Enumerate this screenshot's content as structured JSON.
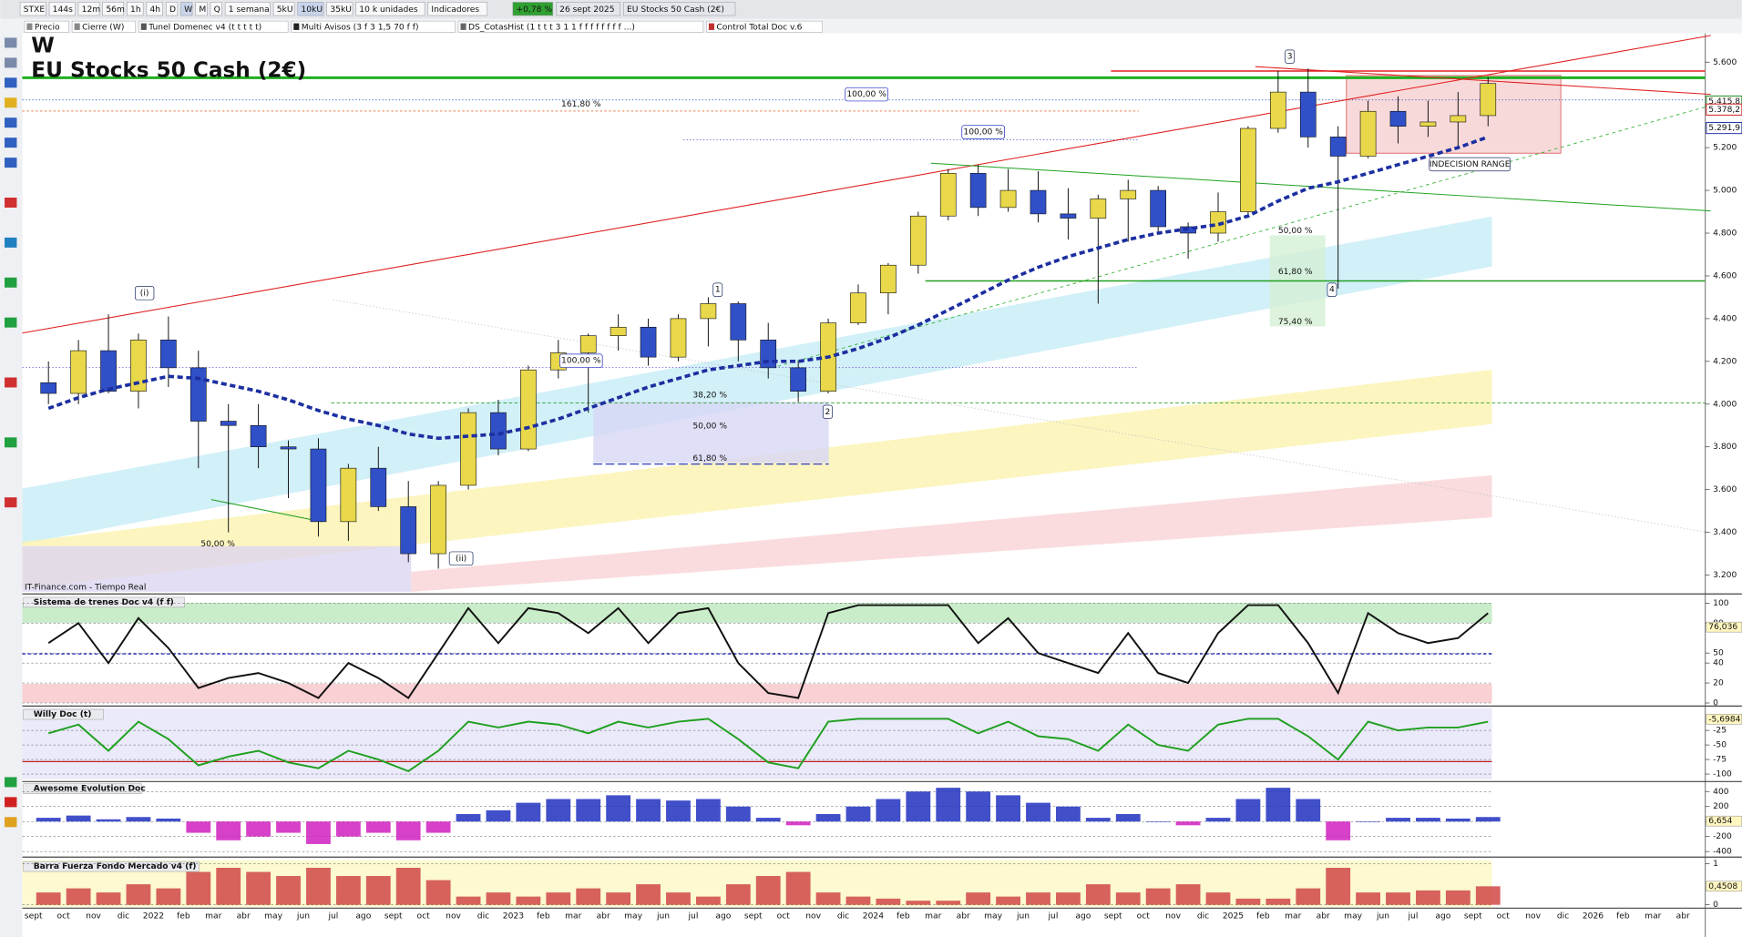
{
  "toolbar": {
    "symbol": "STXE",
    "timeframes": [
      "144s",
      "12m",
      "56m",
      "1h",
      "4h",
      "D",
      "W",
      "M",
      "Q"
    ],
    "period": "1 semana",
    "units": [
      "5kU",
      "10kU",
      "35kU"
    ],
    "units_label": "10 k unidades",
    "indicators": "Indicadores",
    "change": "+0,78 %",
    "date": "26 sept 2025",
    "instrument": "EU Stocks 50 Cash (2€)"
  },
  "indicator_tabs": [
    "Precio",
    "Cierre (W)",
    "Tunel Domenec v4 (t t t t t)",
    "Multi Avisos (3 f 3 1,5 70 f f)",
    "DS_CotasHist (1 t t t 3 1 1 f f f f f f f f ...)",
    "Control Total Doc v.6"
  ],
  "chart_data": [
    {
      "type": "candlestick",
      "subtitle": "W",
      "title": "EU Stocks 50 Cash (2€)",
      "source": "IT-Finance.com - Tiempo Real",
      "categories": [
        "sept",
        "oct",
        "nov",
        "dic",
        "2022",
        "feb",
        "mar",
        "abr",
        "may",
        "jun",
        "jul",
        "ago",
        "sept",
        "oct",
        "nov",
        "dic",
        "2023",
        "feb",
        "mar",
        "abr",
        "may",
        "jun",
        "jul",
        "ago",
        "sept",
        "oct",
        "nov",
        "dic",
        "2024",
        "feb",
        "mar",
        "abr",
        "may",
        "jun",
        "jul",
        "ago",
        "sept",
        "oct",
        "nov",
        "dic",
        "2025",
        "feb",
        "mar",
        "abr",
        "may",
        "jun",
        "jul",
        "ago",
        "sept",
        "oct",
        "nov",
        "dic",
        "2026",
        "feb",
        "mar",
        "abr"
      ],
      "candles": [
        [
          4100,
          4200,
          4000,
          4050
        ],
        [
          4050,
          4300,
          4000,
          4250
        ],
        [
          4250,
          4420,
          4050,
          4060
        ],
        [
          4060,
          4330,
          3980,
          4300
        ],
        [
          4300,
          4410,
          4080,
          4170
        ],
        [
          4170,
          4250,
          3700,
          3920
        ],
        [
          3920,
          4000,
          3400,
          3900
        ],
        [
          3900,
          4000,
          3700,
          3800
        ],
        [
          3800,
          3830,
          3560,
          3790
        ],
        [
          3790,
          3840,
          3380,
          3450
        ],
        [
          3450,
          3720,
          3360,
          3700
        ],
        [
          3700,
          3800,
          3500,
          3520
        ],
        [
          3520,
          3640,
          3260,
          3300
        ],
        [
          3300,
          3640,
          3230,
          3620
        ],
        [
          3620,
          3980,
          3600,
          3960
        ],
        [
          3960,
          4020,
          3760,
          3790
        ],
        [
          3790,
          4180,
          3780,
          4160
        ],
        [
          4160,
          4300,
          4120,
          4240
        ],
        [
          4240,
          4330,
          3960,
          4320
        ],
        [
          4320,
          4420,
          4250,
          4360
        ],
        [
          4360,
          4400,
          4180,
          4220
        ],
        [
          4220,
          4420,
          4200,
          4400
        ],
        [
          4400,
          4500,
          4270,
          4470
        ],
        [
          4470,
          4480,
          4200,
          4300
        ],
        [
          4300,
          4380,
          4120,
          4170
        ],
        [
          4170,
          4200,
          4010,
          4060
        ],
        [
          4060,
          4400,
          4050,
          4380
        ],
        [
          4380,
          4560,
          4370,
          4520
        ],
        [
          4520,
          4660,
          4420,
          4650
        ],
        [
          4650,
          4900,
          4610,
          4880
        ],
        [
          4880,
          5100,
          4860,
          5080
        ],
        [
          5080,
          5120,
          4880,
          4920
        ],
        [
          4920,
          5100,
          4900,
          5000
        ],
        [
          5000,
          5090,
          4850,
          4890
        ],
        [
          4890,
          5010,
          4770,
          4870
        ],
        [
          4870,
          4980,
          4470,
          4960
        ],
        [
          4960,
          5050,
          4760,
          5000
        ],
        [
          5000,
          5020,
          4800,
          4830
        ],
        [
          4830,
          4850,
          4680,
          4800
        ],
        [
          4800,
          4990,
          4760,
          4900
        ],
        [
          4900,
          5300,
          4880,
          5290
        ],
        [
          5290,
          5560,
          5270,
          5460
        ],
        [
          5460,
          5570,
          5200,
          5250
        ],
        [
          5250,
          5300,
          4540,
          5160
        ],
        [
          5160,
          5420,
          5150,
          5370
        ],
        [
          5370,
          5440,
          5220,
          5300
        ],
        [
          5300,
          5420,
          5250,
          5320
        ],
        [
          5320,
          5460,
          5200,
          5350
        ],
        [
          5350,
          5530,
          5300,
          5500
        ],
        null,
        null,
        null,
        null,
        null,
        null,
        null
      ],
      "up_color": "#e8d84a",
      "down_color": "#3050c8",
      "moving_average": {
        "color": "#1c2fa0",
        "values": [
          3980,
          4030,
          4070,
          4100,
          4130,
          4120,
          4090,
          4060,
          4020,
          3970,
          3930,
          3900,
          3860,
          3840,
          3850,
          3860,
          3890,
          3930,
          3980,
          4030,
          4080,
          4120,
          4160,
          4180,
          4200,
          4200,
          4220,
          4260,
          4310,
          4370,
          4440,
          4510,
          4580,
          4640,
          4690,
          4730,
          4770,
          4800,
          4820,
          4840,
          4880,
          4950,
          5010,
          5040,
          5080,
          5120,
          5160,
          5200,
          5250,
          null,
          null,
          null,
          null,
          null,
          null,
          null
        ]
      },
      "ylim": [
        3122,
        5735
      ],
      "yticks": [
        {
          "value": 5600,
          "label": "5.600"
        },
        {
          "value": 5400,
          "label": "5.400"
        },
        {
          "value": 5200,
          "label": "5.200"
        },
        {
          "value": 5000,
          "label": "5.000"
        },
        {
          "value": 4800,
          "label": "4.800"
        },
        {
          "value": 4600,
          "label": "4.600"
        },
        {
          "value": 4400,
          "label": "4.400"
        },
        {
          "value": 4200,
          "label": "4.200"
        },
        {
          "value": 4000,
          "label": "4.000"
        },
        {
          "value": 3800,
          "label": "3.800"
        },
        {
          "value": 3600,
          "label": "3.600"
        },
        {
          "value": 3400,
          "label": "3.400"
        },
        {
          "value": 3200,
          "label": "3.200"
        }
      ],
      "price_labels": [
        {
          "value": 5415.8,
          "label": "5.415,8",
          "color": "#1a8a1a"
        },
        {
          "value": 5378.2,
          "label": "5.378,2",
          "color": "#d02020"
        },
        {
          "value": 5291.9,
          "label": "5.291,9",
          "color": "#2030a0"
        }
      ],
      "annotations": [
        "161,80 %",
        "100,00 %",
        "100,00 %",
        "100,00 %",
        "38,20 %",
        "50,00 %",
        "61,80 %",
        "50,00 %",
        "50,00 %",
        "61,80 %",
        "75,40 %",
        "(i)",
        "(ii)",
        "1",
        "2",
        "3",
        "4",
        "INDECISION RANGE"
      ],
      "grid": false
    },
    {
      "type": "line",
      "title": "Sistema de trenes Doc v4 (f f)",
      "color": "#111111",
      "values": [
        60,
        80,
        40,
        85,
        55,
        15,
        25,
        30,
        20,
        5,
        40,
        25,
        5,
        50,
        95,
        60,
        95,
        90,
        70,
        95,
        60,
        90,
        95,
        40,
        10,
        5,
        90,
        98,
        98,
        98,
        98,
        60,
        85,
        50,
        40,
        30,
        70,
        30,
        20,
        70,
        98,
        98,
        60,
        10,
        90,
        70,
        60,
        65,
        90,
        null,
        null,
        null,
        null,
        null,
        null,
        null
      ],
      "ylim": [
        -2,
        107
      ],
      "yticks": [
        100,
        80,
        50,
        40,
        20,
        0
      ],
      "current_label": {
        "value": 76.036,
        "label": "76,036"
      }
    },
    {
      "type": "line",
      "title": "Willy Doc (t)",
      "color": "#20a020",
      "values": [
        -30,
        -15,
        -60,
        -10,
        -40,
        -85,
        -70,
        -60,
        -80,
        -90,
        -60,
        -75,
        -95,
        -60,
        -10,
        -20,
        -10,
        -15,
        -30,
        -10,
        -20,
        -10,
        -5,
        -40,
        -80,
        -90,
        -10,
        -5,
        -5,
        -5,
        -5,
        -30,
        -10,
        -35,
        -40,
        -60,
        -15,
        -50,
        -60,
        -15,
        -5,
        -5,
        -35,
        -75,
        -10,
        -25,
        -20,
        -20,
        -10,
        null,
        null,
        null,
        null,
        null,
        null,
        null
      ],
      "ylim": [
        -111,
        13
      ],
      "yticks": [
        -25,
        -50,
        -75,
        -100
      ],
      "current_label": {
        "value": -5.6984,
        "label": "-5,6984"
      }
    },
    {
      "type": "bar",
      "title": "Awesome Evolution Doc",
      "color": "#2030c0",
      "negative_color": "#d020c0",
      "values": [
        50,
        80,
        30,
        60,
        40,
        -150,
        -250,
        -200,
        -150,
        -300,
        -200,
        -150,
        -250,
        -150,
        100,
        150,
        250,
        300,
        300,
        350,
        300,
        280,
        300,
        200,
        50,
        -50,
        100,
        200,
        300,
        400,
        450,
        400,
        350,
        250,
        200,
        50,
        100,
        0,
        -50,
        50,
        300,
        450,
        300,
        -250,
        0,
        50,
        50,
        40,
        60,
        null,
        null,
        null,
        null,
        null,
        null,
        null
      ],
      "ylim": [
        -444,
        518
      ],
      "yticks": [
        400,
        200,
        0,
        -200,
        -400
      ],
      "current_label": {
        "value": 6.654,
        "label": "6,654"
      }
    },
    {
      "type": "bar",
      "title": "Barra Fuerza Fondo Mercado v4 (f)",
      "color": "#d04848",
      "values": [
        0.3,
        0.4,
        0.3,
        0.5,
        0.4,
        0.8,
        0.9,
        0.8,
        0.7,
        0.9,
        0.7,
        0.7,
        0.9,
        0.6,
        0.2,
        0.3,
        0.2,
        0.3,
        0.4,
        0.3,
        0.5,
        0.3,
        0.2,
        0.5,
        0.7,
        0.8,
        0.3,
        0.2,
        0.15,
        0.1,
        0.1,
        0.3,
        0.2,
        0.3,
        0.3,
        0.5,
        0.3,
        0.4,
        0.5,
        0.3,
        0.15,
        0.15,
        0.4,
        0.9,
        0.3,
        0.3,
        0.35,
        0.35,
        0.45,
        null,
        null,
        null,
        null,
        null,
        null,
        null
      ],
      "ylim": [
        -0.135,
        1.08
      ],
      "yticks": [
        1,
        0
      ],
      "current_label": {
        "value": 0.4508,
        "label": "0,4508"
      }
    }
  ]
}
